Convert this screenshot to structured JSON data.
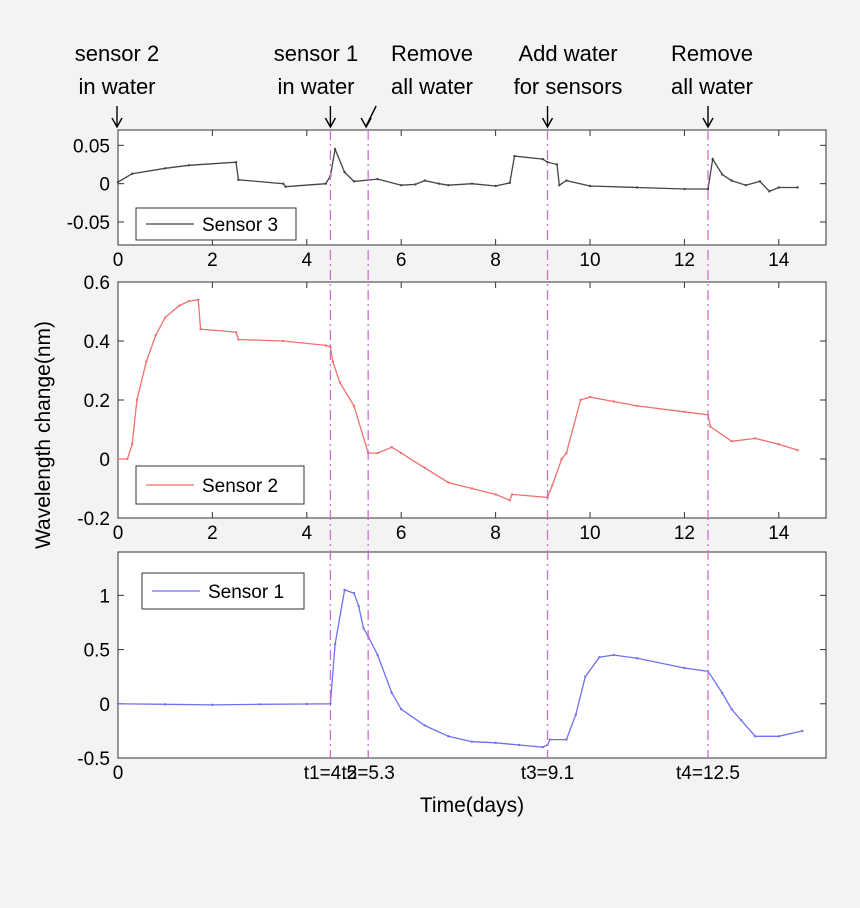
{
  "chart_data": [
    {
      "type": "line",
      "id": "top",
      "xlim": [
        0,
        15
      ],
      "ylim": [
        -0.08,
        0.07
      ],
      "xticks": [
        0,
        2,
        4,
        6,
        8,
        10,
        12,
        14
      ],
      "yticks": [
        -0.05,
        0,
        0.05
      ],
      "ytick_labels": [
        "-0.05",
        "0",
        "0.05"
      ],
      "xtick_labels": [
        "0",
        "2",
        "4",
        "6",
        "8",
        "10",
        "12",
        "14"
      ],
      "legend_position": "bottom-left",
      "series": [
        {
          "name": "Sensor 3",
          "color": "#444444",
          "x": [
            0,
            0.3,
            1,
            1.5,
            2.5,
            2.55,
            3.5,
            3.55,
            4.4,
            4.5,
            4.6,
            4.8,
            5.0,
            5.5,
            6.0,
            6.3,
            6.5,
            6.8,
            7.0,
            7.5,
            8.0,
            8.3,
            8.4,
            9.0,
            9.1,
            9.3,
            9.35,
            9.5,
            10,
            11,
            12,
            12.5,
            12.6,
            12.8,
            13.0,
            13.3,
            13.6,
            13.8,
            14.0,
            14.4
          ],
          "y": [
            0.002,
            0.013,
            0.02,
            0.024,
            0.028,
            0.005,
            0.0,
            -0.004,
            0.0,
            0.01,
            0.045,
            0.015,
            0.003,
            0.006,
            -0.002,
            -0.001,
            0.004,
            0.0,
            -0.002,
            0.0,
            -0.003,
            0.001,
            0.036,
            0.032,
            0.028,
            0.025,
            -0.002,
            0.004,
            -0.003,
            -0.005,
            -0.007,
            -0.007,
            0.032,
            0.012,
            0.004,
            -0.002,
            0.003,
            -0.01,
            -0.005,
            -0.005
          ]
        }
      ]
    },
    {
      "type": "line",
      "id": "middle",
      "xlim": [
        0,
        15
      ],
      "ylim": [
        -0.2,
        0.6
      ],
      "xticks": [
        0,
        2,
        4,
        6,
        8,
        10,
        12,
        14
      ],
      "yticks": [
        -0.2,
        0,
        0.2,
        0.4,
        0.6
      ],
      "ytick_labels": [
        "-0.2",
        "0",
        "0.2",
        "0.4",
        "0.6"
      ],
      "xtick_labels": [
        "0",
        "2",
        "4",
        "6",
        "8",
        "10",
        "12",
        "14"
      ],
      "ylabel": "Wavelength change(nm)",
      "legend_position": "bottom-left",
      "series": [
        {
          "name": "Sensor 2",
          "color": "#f07070",
          "x": [
            0,
            0.2,
            0.3,
            0.4,
            0.6,
            0.8,
            1.0,
            1.3,
            1.5,
            1.7,
            1.75,
            2.5,
            2.55,
            3.5,
            4.4,
            4.5,
            4.55,
            4.7,
            5.0,
            5.3,
            5.5,
            5.8,
            6.0,
            6.5,
            7.0,
            7.5,
            8.0,
            8.3,
            8.35,
            9.1,
            9.2,
            9.4,
            9.5,
            9.8,
            10.0,
            10.5,
            11,
            12,
            12.5,
            12.55,
            13.0,
            13.5,
            14.0,
            14.4
          ],
          "y": [
            0.0,
            0.0,
            0.05,
            0.2,
            0.33,
            0.42,
            0.48,
            0.52,
            0.535,
            0.54,
            0.44,
            0.43,
            0.405,
            0.4,
            0.385,
            0.38,
            0.33,
            0.26,
            0.18,
            0.02,
            0.02,
            0.04,
            0.02,
            -0.03,
            -0.08,
            -0.1,
            -0.12,
            -0.14,
            -0.12,
            -0.13,
            -0.09,
            0.0,
            0.02,
            0.2,
            0.21,
            0.195,
            0.18,
            0.16,
            0.15,
            0.11,
            0.06,
            0.07,
            0.05,
            0.03
          ]
        }
      ]
    },
    {
      "type": "line",
      "id": "bottom",
      "xlim": [
        0,
        15
      ],
      "ylim": [
        -0.5,
        1.4
      ],
      "yticks": [
        -0.5,
        0,
        0.5,
        1
      ],
      "ytick_labels": [
        "-0.5",
        "0",
        "0.5",
        "1"
      ],
      "xticks": [
        0,
        4.5,
        5.3,
        9.1,
        12.5
      ],
      "xtick_labels": [
        "0",
        "t1=4.5",
        "t2=5.3",
        "t3=9.1",
        "t4=12.5"
      ],
      "xlabel": "Time(days)",
      "legend_position": "top-left",
      "series": [
        {
          "name": "Sensor 1",
          "color": "#7070f0",
          "x": [
            0,
            1,
            2,
            3,
            4,
            4.5,
            4.6,
            4.8,
            5.0,
            5.1,
            5.2,
            5.3,
            5.5,
            5.8,
            6.0,
            6.5,
            7.0,
            7.5,
            8.0,
            8.5,
            9.0,
            9.1,
            9.15,
            9.5,
            9.7,
            9.9,
            10.2,
            10.5,
            11,
            12,
            12.5,
            12.8,
            13.0,
            13.2,
            13.5,
            14.0,
            14.5
          ],
          "y": [
            0.0,
            -0.005,
            -0.01,
            -0.005,
            -0.002,
            0.0,
            0.55,
            1.05,
            1.02,
            0.9,
            0.7,
            0.62,
            0.45,
            0.1,
            -0.05,
            -0.2,
            -0.3,
            -0.35,
            -0.36,
            -0.38,
            -0.4,
            -0.38,
            -0.33,
            -0.33,
            -0.1,
            0.25,
            0.43,
            0.45,
            0.42,
            0.33,
            0.3,
            0.1,
            -0.05,
            -0.15,
            -0.3,
            -0.3,
            -0.25
          ]
        }
      ]
    }
  ],
  "events": [
    {
      "x": 4.5,
      "label": "t1=4.5"
    },
    {
      "x": 5.3,
      "label": "t2=5.3"
    },
    {
      "x": 9.1,
      "label": "t3=9.1"
    },
    {
      "x": 12.5,
      "label": "t4=12.5"
    }
  ],
  "annotations": [
    {
      "x": 0,
      "lines": [
        "sensor 2",
        "in water"
      ]
    },
    {
      "x": 4.5,
      "lines": [
        "sensor 1",
        "in water"
      ]
    },
    {
      "x": 5.3,
      "lines": [
        "Remove",
        "all water"
      ]
    },
    {
      "x": 9.1,
      "lines": [
        "Add water",
        "for sensors"
      ]
    },
    {
      "x": 12.5,
      "lines": [
        "Remove",
        "all water"
      ]
    }
  ],
  "event_line_color": "#d070d0"
}
